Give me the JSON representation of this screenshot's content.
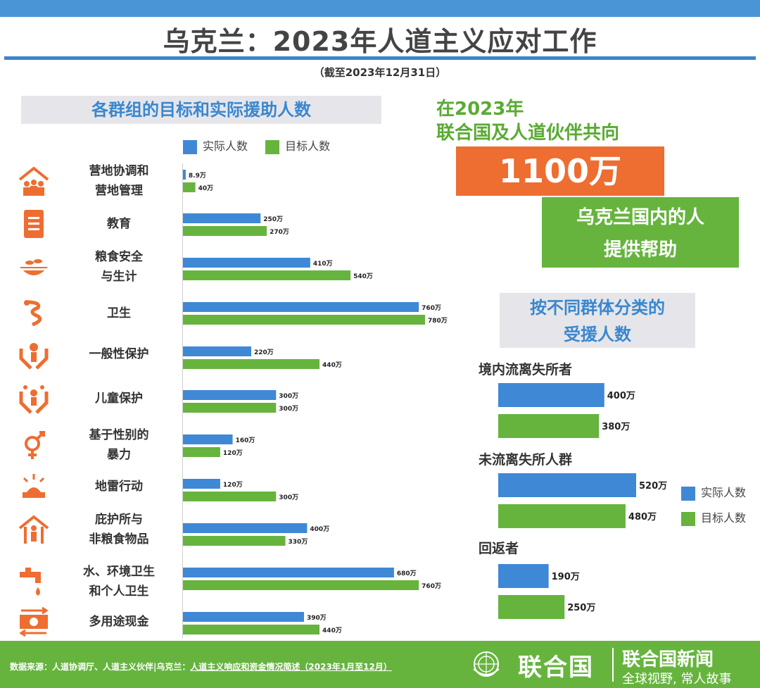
{
  "title": "乌克兰：2023年人道主义应对工作",
  "date": "（截至2023年12月31日）",
  "left_header": "各群组的目标和实际援助人数",
  "legend": {
    "actual": "实际人数",
    "target": "目标人数"
  },
  "colors": {
    "actual": "#3f88d6",
    "target": "#66b43e",
    "highlight": "#ee6d31"
  },
  "sectors": [
    {
      "label": [
        "营地协调和",
        "营地管理"
      ],
      "icon": "camp-people-icon"
    },
    {
      "label": [
        "教育"
      ],
      "icon": "book-icon"
    },
    {
      "label": [
        "粮食安全",
        "与生计"
      ],
      "icon": "food-bowl-icon"
    },
    {
      "label": [
        "卫生"
      ],
      "icon": "health-symbol-icon"
    },
    {
      "label": [
        "一般性保护"
      ],
      "icon": "protection-hands-icon"
    },
    {
      "label": [
        "儿童保护"
      ],
      "icon": "child-protection-icon"
    },
    {
      "label": [
        "基于性别的",
        "暴力"
      ],
      "icon": "gender-symbol-icon"
    },
    {
      "label": [
        "地雷行动"
      ],
      "icon": "landmine-icon"
    },
    {
      "label": [
        "庇护所与",
        "非粮食物品"
      ],
      "icon": "shelter-icon"
    },
    {
      "label": [
        "水、环境卫生",
        "和个人卫生"
      ],
      "icon": "water-tap-icon"
    },
    {
      "label": [
        "多用途现金"
      ],
      "icon": "cash-icon"
    }
  ],
  "chart_data": [
    {
      "type": "bar",
      "orientation": "horizontal",
      "title": "各群组的目标和实际援助人数",
      "unit": "万",
      "categories": [
        "营地协调和营地管理",
        "教育",
        "粮食安全与生计",
        "卫生",
        "一般性保护",
        "儿童保护",
        "基于性别的暴力",
        "地雷行动",
        "庇护所与非粮食物品",
        "水、环境卫生和个人卫生",
        "多用途现金"
      ],
      "series": [
        {
          "name": "实际人数",
          "values": [
            8.9,
            250,
            410,
            760,
            220,
            300,
            160,
            120,
            400,
            680,
            390
          ],
          "labels": [
            "8.9万",
            "250万",
            "410万",
            "760万",
            "220万",
            "300万",
            "160万",
            "120万",
            "400万",
            "680万",
            "390万"
          ]
        },
        {
          "name": "目标人数",
          "values": [
            40,
            270,
            540,
            780,
            440,
            300,
            120,
            300,
            330,
            760,
            440
          ],
          "labels": [
            "40万",
            "270万",
            "540万",
            "780万",
            "440万",
            "300万",
            "120万",
            "300万",
            "330万",
            "760万",
            "440万"
          ]
        }
      ],
      "legend_position": "top"
    },
    {
      "type": "bar",
      "orientation": "horizontal",
      "title": "按不同群体分类的受援人数",
      "unit": "万",
      "categories": [
        "境内流离失所者",
        "未流离失所人群",
        "回返者"
      ],
      "series": [
        {
          "name": "实际人数",
          "values": [
            400,
            520,
            190
          ],
          "labels": [
            "400万",
            "520万",
            "190万"
          ]
        },
        {
          "name": "目标人数",
          "values": [
            380,
            480,
            250
          ],
          "labels": [
            "380万",
            "480万",
            "250万"
          ]
        }
      ],
      "legend_position": "right"
    }
  ],
  "highlight": {
    "line1": "在2023年",
    "line2": "联合国及人道伙伴共向",
    "number": "1100万",
    "line3": "乌克兰国内的人",
    "line4": "提供帮助"
  },
  "right_header": [
    "按不同群体分类的",
    "受援人数"
  ],
  "footer": {
    "source_prefix": "数据来源：人道协调厅、人道主义伙伴|乌克兰：",
    "source_link": "人道主义响应和资金情况简述（2023年1月至12月）",
    "un_name": "联合国",
    "news": "联合国新闻",
    "tagline": "全球视野, 常人故事"
  }
}
